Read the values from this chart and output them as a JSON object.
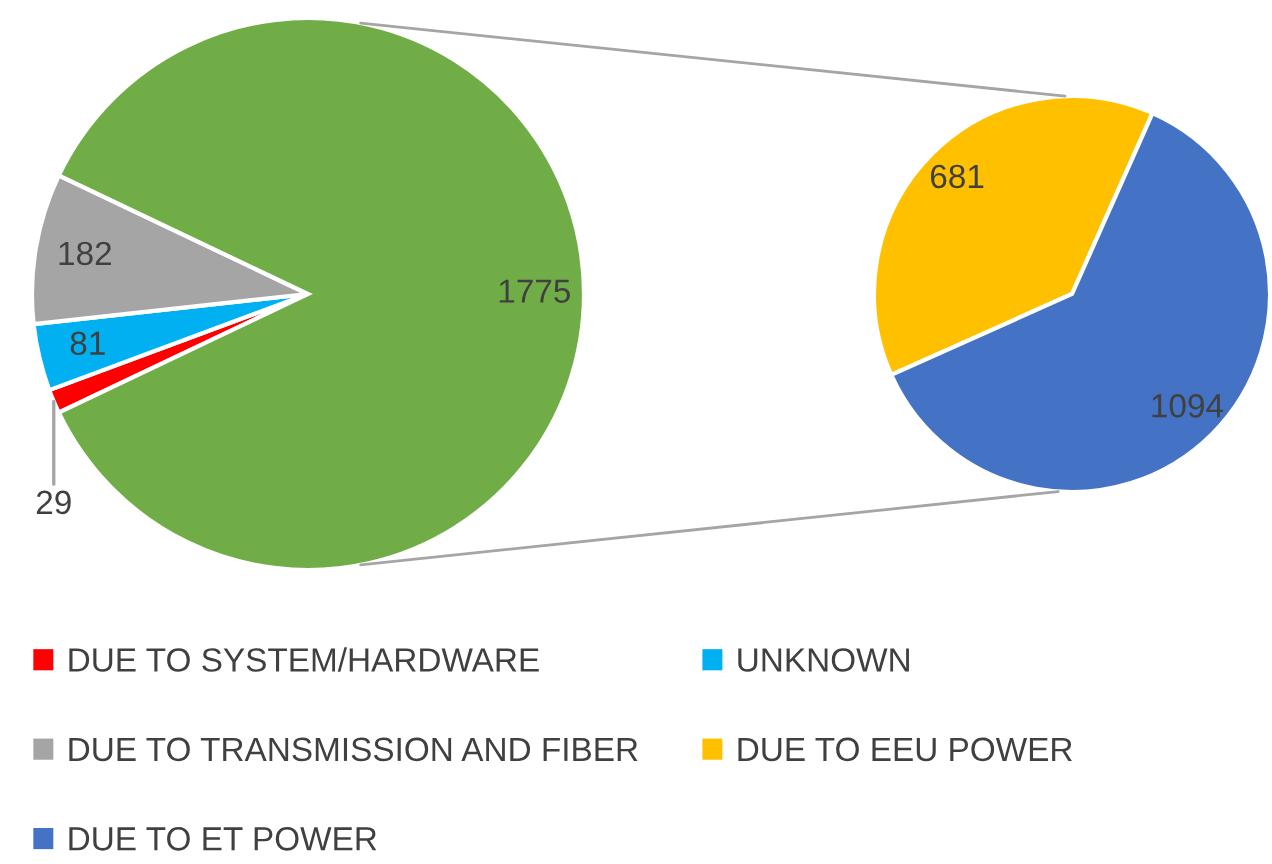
{
  "chart_data": [
    {
      "type": "pie",
      "categories": [
        "DUE TO SYSTEM/HARDWARE",
        "UNKNOWN",
        "DUE TO TRANSMISSION AND FIBER",
        null
      ],
      "values": [
        29,
        81,
        182,
        1775
      ],
      "colors": [
        "#ff0000",
        "#00b0f0",
        "#a5a5a5",
        "#70ad47"
      ],
      "data_labels": true,
      "legend": "bottom"
    },
    {
      "type": "pie",
      "categories": [
        "DUE TO EEU POWER",
        "DUE TO ET POWER"
      ],
      "values": [
        681,
        1094
      ],
      "colors": [
        "#ffc000",
        "#4472c4"
      ],
      "data_labels": true,
      "legend": "bottom"
    }
  ]
}
